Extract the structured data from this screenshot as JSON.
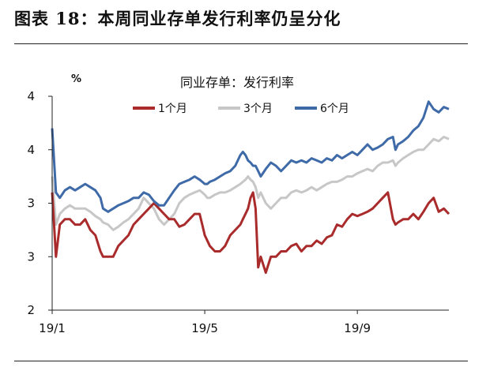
{
  "figure": {
    "title": "图表 18：本周同业存单发行利率仍呈分化"
  },
  "chart_data": {
    "type": "line",
    "title": "同业存单：发行利率",
    "unit_label": "%",
    "xlabel": "",
    "ylabel": "",
    "y_ticks": [
      "2",
      "3",
      "3",
      "4",
      "4"
    ],
    "y_tick_values": [
      2.0,
      2.5,
      3.0,
      3.5,
      4.0
    ],
    "ylim": [
      2.0,
      4.0
    ],
    "x_ticks": [
      "19/1",
      "19/5",
      "19/9"
    ],
    "x_tick_positions": [
      0,
      120,
      240
    ],
    "xlim": [
      0,
      312
    ],
    "grid": false,
    "legend_position": "top",
    "series": [
      {
        "name": "1个月",
        "color": "#a92b2b",
        "x": [
          0,
          3,
          6,
          10,
          14,
          18,
          22,
          26,
          30,
          34,
          38,
          40,
          44,
          48,
          52,
          56,
          60,
          64,
          68,
          72,
          76,
          80,
          84,
          88,
          92,
          96,
          100,
          104,
          108,
          112,
          116,
          118,
          120,
          122,
          124,
          128,
          132,
          136,
          140,
          144,
          148,
          150,
          152,
          154,
          156,
          158,
          160,
          162,
          164,
          168,
          172,
          176,
          180,
          184,
          188,
          192,
          196,
          200,
          204,
          208,
          212,
          216,
          220,
          224,
          228,
          232,
          236,
          240,
          244,
          248,
          252,
          256,
          260,
          264,
          268,
          270,
          272,
          276,
          280,
          284,
          288,
          292,
          296,
          300,
          304,
          308,
          312
        ],
        "values": [
          3.1,
          2.5,
          2.8,
          2.85,
          2.85,
          2.8,
          2.8,
          2.85,
          2.75,
          2.7,
          2.55,
          2.5,
          2.5,
          2.5,
          2.6,
          2.65,
          2.7,
          2.8,
          2.85,
          2.9,
          2.95,
          3.0,
          2.95,
          2.9,
          2.85,
          2.85,
          2.78,
          2.8,
          2.85,
          2.9,
          2.9,
          2.8,
          2.7,
          2.65,
          2.6,
          2.55,
          2.55,
          2.6,
          2.7,
          2.75,
          2.8,
          2.85,
          2.9,
          2.95,
          3.05,
          3.1,
          2.95,
          2.4,
          2.5,
          2.35,
          2.5,
          2.5,
          2.55,
          2.55,
          2.6,
          2.62,
          2.55,
          2.6,
          2.6,
          2.65,
          2.62,
          2.68,
          2.7,
          2.8,
          2.78,
          2.85,
          2.9,
          2.88,
          2.9,
          2.92,
          2.95,
          3.0,
          3.05,
          3.1,
          2.85,
          2.8,
          2.82,
          2.85,
          2.85,
          2.9,
          2.85,
          2.92,
          3.0,
          3.05,
          2.92,
          2.95,
          2.9
        ]
      },
      {
        "name": "3个月",
        "color": "#c7c7c7",
        "x": [
          0,
          3,
          6,
          10,
          14,
          18,
          22,
          26,
          30,
          34,
          38,
          40,
          44,
          48,
          52,
          56,
          60,
          64,
          68,
          72,
          76,
          80,
          84,
          88,
          92,
          96,
          100,
          104,
          108,
          112,
          116,
          118,
          120,
          122,
          124,
          128,
          132,
          136,
          140,
          144,
          148,
          150,
          152,
          154,
          156,
          158,
          160,
          162,
          164,
          168,
          172,
          176,
          180,
          184,
          188,
          192,
          196,
          200,
          204,
          208,
          212,
          216,
          220,
          224,
          228,
          232,
          236,
          240,
          244,
          248,
          252,
          256,
          260,
          264,
          268,
          270,
          272,
          276,
          280,
          284,
          288,
          292,
          296,
          300,
          304,
          308,
          312
        ],
        "values": [
          3.25,
          2.8,
          2.9,
          2.95,
          2.98,
          2.95,
          2.95,
          2.95,
          2.92,
          2.88,
          2.85,
          2.82,
          2.8,
          2.75,
          2.78,
          2.82,
          2.85,
          2.9,
          2.95,
          3.05,
          3.0,
          2.95,
          2.85,
          2.8,
          2.85,
          2.9,
          3.0,
          3.05,
          3.08,
          3.1,
          3.12,
          3.1,
          3.08,
          3.05,
          3.05,
          3.08,
          3.1,
          3.1,
          3.12,
          3.15,
          3.18,
          3.2,
          3.22,
          3.25,
          3.22,
          3.2,
          3.15,
          3.05,
          3.1,
          3.0,
          2.95,
          3.0,
          3.05,
          3.05,
          3.1,
          3.12,
          3.1,
          3.12,
          3.15,
          3.12,
          3.15,
          3.18,
          3.2,
          3.2,
          3.22,
          3.25,
          3.25,
          3.28,
          3.3,
          3.32,
          3.3,
          3.35,
          3.38,
          3.38,
          3.4,
          3.35,
          3.38,
          3.42,
          3.45,
          3.48,
          3.5,
          3.5,
          3.55,
          3.6,
          3.58,
          3.62,
          3.6
        ]
      },
      {
        "name": "6个月",
        "color": "#3f6aa8",
        "x": [
          0,
          3,
          6,
          10,
          14,
          18,
          22,
          26,
          30,
          34,
          38,
          40,
          44,
          48,
          52,
          56,
          60,
          64,
          68,
          72,
          76,
          80,
          84,
          88,
          92,
          96,
          100,
          104,
          108,
          112,
          116,
          118,
          120,
          122,
          124,
          128,
          132,
          136,
          140,
          144,
          148,
          150,
          152,
          154,
          156,
          158,
          160,
          162,
          164,
          168,
          172,
          176,
          180,
          184,
          188,
          192,
          196,
          200,
          204,
          208,
          212,
          216,
          220,
          224,
          228,
          232,
          236,
          240,
          244,
          248,
          252,
          256,
          260,
          264,
          268,
          270,
          272,
          276,
          280,
          284,
          288,
          292,
          296,
          300,
          304,
          308,
          312
        ],
        "values": [
          3.7,
          3.1,
          3.05,
          3.12,
          3.15,
          3.12,
          3.15,
          3.18,
          3.15,
          3.12,
          3.05,
          2.95,
          2.92,
          2.95,
          2.98,
          3.0,
          3.02,
          3.05,
          3.05,
          3.1,
          3.08,
          3.02,
          2.98,
          2.98,
          3.05,
          3.12,
          3.18,
          3.2,
          3.22,
          3.25,
          3.22,
          3.2,
          3.18,
          3.18,
          3.2,
          3.22,
          3.25,
          3.28,
          3.3,
          3.35,
          3.45,
          3.48,
          3.45,
          3.4,
          3.38,
          3.35,
          3.35,
          3.3,
          3.25,
          3.32,
          3.38,
          3.35,
          3.3,
          3.35,
          3.4,
          3.38,
          3.4,
          3.38,
          3.42,
          3.4,
          3.38,
          3.42,
          3.4,
          3.45,
          3.42,
          3.45,
          3.48,
          3.45,
          3.5,
          3.55,
          3.5,
          3.52,
          3.55,
          3.6,
          3.62,
          3.5,
          3.55,
          3.58,
          3.62,
          3.68,
          3.72,
          3.8,
          3.95,
          3.88,
          3.85,
          3.9,
          3.88
        ]
      }
    ]
  }
}
